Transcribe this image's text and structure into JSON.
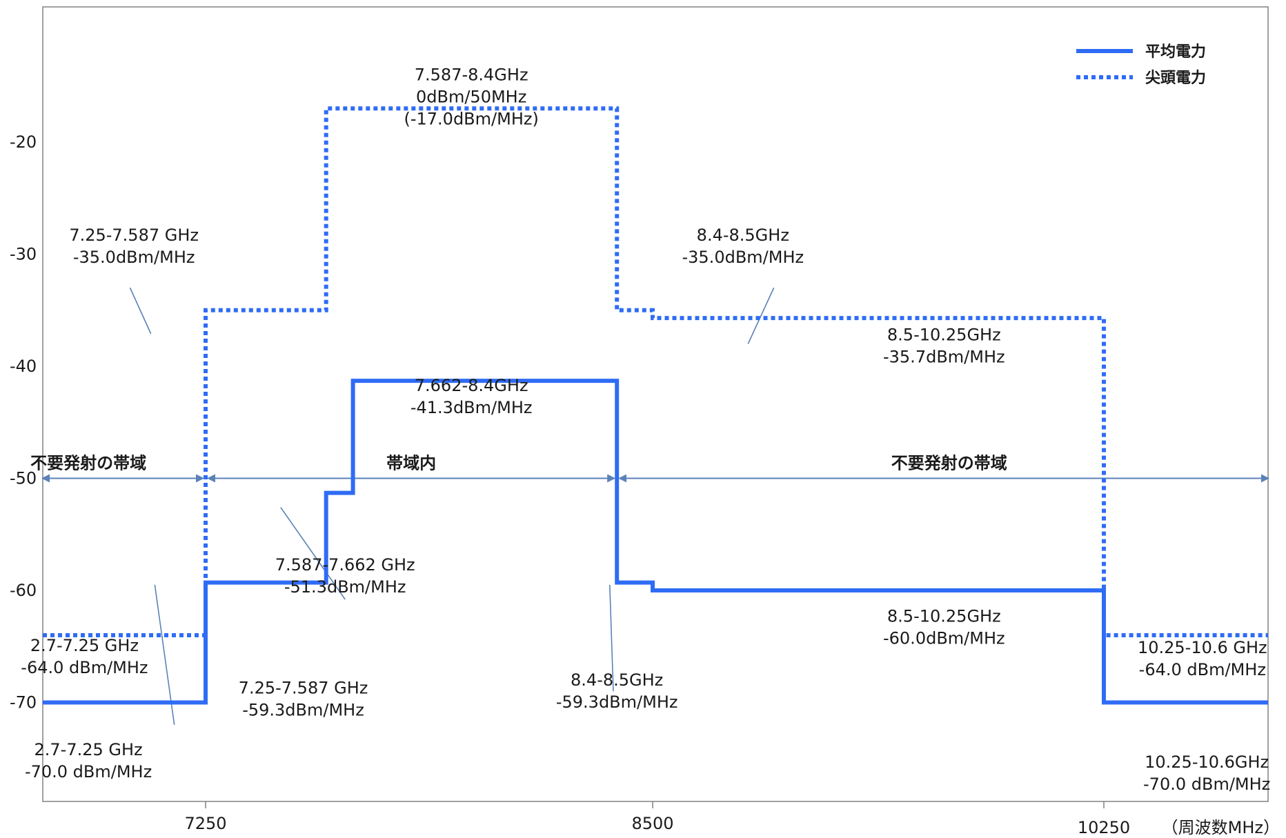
{
  "chart_data": {
    "type": "line",
    "xlabel": "（周波数MHz）",
    "ylabel": "",
    "xlim": [
      6000,
      11000
    ],
    "ylim": [
      -79,
      -8
    ],
    "x_ticks": [
      7250,
      8500,
      10250
    ],
    "y_ticks": [
      -20,
      -30,
      -40,
      -50,
      -60,
      -70
    ],
    "grid": false,
    "legend_position": "top-right",
    "colors": {
      "line": "#2f6cf5",
      "arrow": "#5b82b7",
      "leader": "#5b82b7",
      "axis": "#808080"
    },
    "series": [
      {
        "name": "平均電力",
        "style": "solid",
        "x": [
          6000,
          7250,
          7250,
          7587,
          7587,
          7662,
          7662,
          8400,
          8400,
          8500,
          8500,
          10250,
          10250,
          11000
        ],
        "y": [
          -70.0,
          -70.0,
          -59.3,
          -59.3,
          -51.3,
          -51.3,
          -41.3,
          -41.3,
          -59.3,
          -59.3,
          -60.0,
          -60.0,
          -70.0,
          -70.0
        ]
      },
      {
        "name": "尖頭電力",
        "style": "dotted",
        "x": [
          6000,
          7250,
          7250,
          7587,
          7587,
          8400,
          8400,
          8500,
          8500,
          10250,
          10250,
          11000
        ],
        "y": [
          -64.0,
          -64.0,
          -35.0,
          -35.0,
          -17.0,
          -17.0,
          -35.0,
          -35.0,
          -35.7,
          -35.7,
          -64.0,
          -64.0
        ]
      }
    ],
    "annotations": [
      {
        "lines": [
          "7.587-8.4GHz",
          "0dBm/50MHz",
          "(-17.0dBm/MHz)"
        ],
        "x": 7993,
        "y": -14.5
      },
      {
        "lines": [
          "7.25-7.587 GHz",
          "-35.0dBm/MHz"
        ],
        "x": 6700,
        "y": -28.8
      },
      {
        "lines": [
          "8.4-8.5GHz",
          "-35.0dBm/MHz"
        ],
        "x": 8850,
        "y": -28.8
      },
      {
        "lines": [
          "8.5-10.25GHz",
          "-35.7dBm/MHz"
        ],
        "x": 9630,
        "y": -37.7
      },
      {
        "lines": [
          "7.662-8.4GHz",
          "-41.3dBm/MHz"
        ],
        "x": 7993,
        "y": -42.2
      },
      {
        "lines": [
          "7.587-7.662 GHz",
          "-51.3dBm/MHz"
        ],
        "x": 7640,
        "y": -58.2
      },
      {
        "lines": [
          "2.7-7.25 GHz",
          "-64.0 dBm/MHz"
        ],
        "x": 6320,
        "y": -65.4
      },
      {
        "lines": [
          "8.5-10.25GHz",
          "-60.0dBm/MHz"
        ],
        "x": 9630,
        "y": -62.8
      },
      {
        "lines": [
          "10.25-10.6 GHz",
          "-64.0 dBm/MHz"
        ],
        "x": 10700,
        "y": -65.6
      },
      {
        "lines": [
          "7.25-7.587 GHz",
          "-59.3dBm/MHz"
        ],
        "x": 7523,
        "y": -69.2
      },
      {
        "lines": [
          "8.4-8.5GHz",
          "-59.3dBm/MHz"
        ],
        "x": 8400,
        "y": -68.5
      },
      {
        "lines": [
          "2.7-7.25 GHz",
          "-70.0 dBm/MHz"
        ],
        "x": 6350,
        "y": -74.7
      },
      {
        "lines": [
          "10.25-10.6GHz",
          "-70.0 dBm/MHz"
        ],
        "x": 10720,
        "y": -75.8
      }
    ],
    "leaders": [
      {
        "from": [
          6670,
          -33.0
        ],
        "to": [
          6830,
          -37.1
        ]
      },
      {
        "from": [
          8970,
          -33.0
        ],
        "to": [
          8870,
          -38.0
        ]
      },
      {
        "from": [
          7460,
          -52.6
        ],
        "to": [
          7640,
          -60.8
        ]
      },
      {
        "from": [
          6860,
          -59.5
        ],
        "to": [
          7010,
          -72.0
        ]
      },
      {
        "from": [
          8380,
          -59.5
        ],
        "to": [
          8390,
          -69.0
        ]
      }
    ],
    "band_arrows": [
      {
        "label": "不要発射の帯域",
        "x": [
          6000,
          7250
        ],
        "y": -50,
        "label_x": 6350
      },
      {
        "label": "帯域内",
        "x": [
          7250,
          8400
        ],
        "y": -50,
        "label_x": 7825
      },
      {
        "label": "不要発射の帯域",
        "x": [
          8400,
          11000
        ],
        "y": -50,
        "label_x": 9650
      }
    ]
  }
}
